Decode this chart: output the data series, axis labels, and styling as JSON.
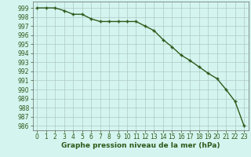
{
  "x": [
    0,
    1,
    2,
    3,
    4,
    5,
    6,
    7,
    8,
    9,
    10,
    11,
    12,
    13,
    14,
    15,
    16,
    17,
    18,
    19,
    20,
    21,
    22,
    23
  ],
  "y": [
    999.0,
    999.0,
    999.0,
    998.7,
    998.3,
    998.3,
    997.8,
    997.5,
    997.5,
    997.5,
    997.5,
    997.5,
    997.0,
    996.5,
    995.5,
    994.7,
    993.8,
    993.2,
    992.5,
    991.8,
    991.2,
    990.0,
    988.7,
    986.0
  ],
  "title": "Graphe pression niveau de la mer (hPa)",
  "ylim": [
    985.5,
    999.7
  ],
  "xlim": [
    -0.5,
    23.5
  ],
  "yticks": [
    986,
    987,
    988,
    989,
    990,
    991,
    992,
    993,
    994,
    995,
    996,
    997,
    998,
    999
  ],
  "xticks": [
    0,
    1,
    2,
    3,
    4,
    5,
    6,
    7,
    8,
    9,
    10,
    11,
    12,
    13,
    14,
    15,
    16,
    17,
    18,
    19,
    20,
    21,
    22,
    23
  ],
  "line_color": "#2d5a1b",
  "marker_color": "#2d5a1b",
  "bg_color": "#d4f5ef",
  "grid_color": "#b0c8c4",
  "title_color": "#2d5a1b",
  "title_fontsize": 6.5,
  "tick_fontsize": 5.5,
  "line_width": 1.0,
  "marker_size": 3.5,
  "marker_edge_width": 1.0
}
